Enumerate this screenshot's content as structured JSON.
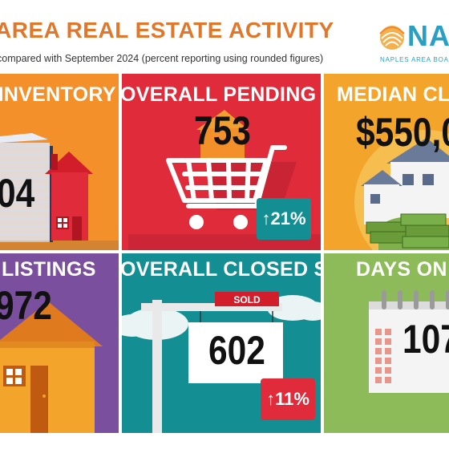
{
  "header": {
    "title": "AREA REAL ESTATE ACTIVITY",
    "subtitle": "compared with September 2024 (percent reporting using rounded figures)",
    "title_color": "#e0772a"
  },
  "logo": {
    "text": "NA",
    "subtext": "NAPLES AREA BOA",
    "color": "#2a9fc4",
    "accent": "#ef8a2c"
  },
  "tiles": [
    {
      "title": "L INVENTORY",
      "value": "04",
      "color": "#f3902a"
    },
    {
      "title": "OVERALL PENDING SALES",
      "value": "753",
      "change": "21%",
      "change_dir": "up",
      "color": "#e02b3b",
      "badge_color": "#138f94"
    },
    {
      "title": "MEDIAN CLOSE",
      "value": "$550,0",
      "color": "#f3a52b"
    },
    {
      "title": "LISTINGS",
      "value": "972",
      "color": "#7a4f9e"
    },
    {
      "title": "OVERALL CLOSED SALES",
      "value": "602",
      "change": "11%",
      "change_dir": "up",
      "color": "#138f94",
      "badge_color": "#e02b3b",
      "sign": "SOLD"
    },
    {
      "title": "DAYS ON MA",
      "value": "107",
      "color": "#8ebb5a"
    }
  ]
}
